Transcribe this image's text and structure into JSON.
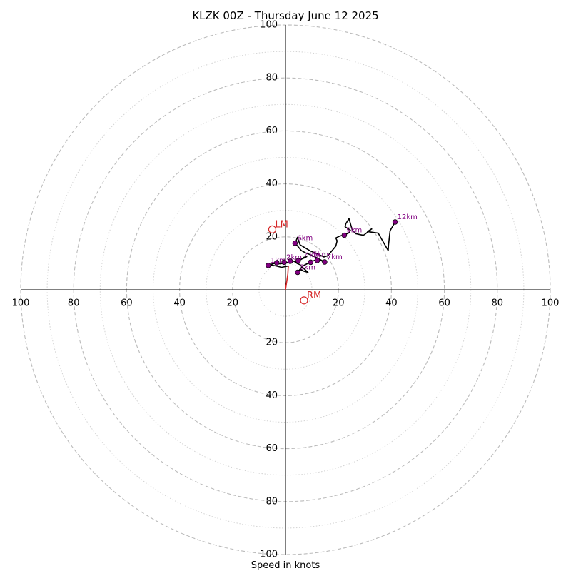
{
  "chart_data": {
    "type": "scatter",
    "title": "KLZK 00Z - Thursday June 12 2025",
    "xlabel": "Speed in knots",
    "axis_range": [
      -100,
      100
    ],
    "major_rings": [
      20,
      40,
      60,
      80,
      100
    ],
    "minor_rings": [
      10,
      30,
      50,
      70,
      90
    ],
    "tick_labels": {
      "x_left": [
        "100",
        "80",
        "60",
        "40",
        "20"
      ],
      "x_right": [
        "20",
        "40",
        "60",
        "80",
        "100"
      ],
      "y_top": [
        "100",
        "80",
        "60",
        "40",
        "20"
      ],
      "y_bottom": [
        "20",
        "40",
        "60",
        "80",
        "100"
      ]
    },
    "series": [
      {
        "color": "#d62728",
        "points": [
          [
            0,
            0
          ],
          [
            0.6,
            4
          ],
          [
            0.9,
            6
          ],
          [
            1,
            8
          ],
          [
            1.1,
            9
          ]
        ]
      },
      {
        "color": "#000000",
        "points": [
          [
            1.1,
            9
          ],
          [
            -1.5,
            8.5
          ],
          [
            -3.5,
            9
          ],
          [
            -6,
            9.5
          ],
          [
            -4,
            10
          ],
          [
            -2,
            9.8
          ],
          [
            0,
            10.2
          ],
          [
            2,
            10.6
          ],
          [
            4.5,
            11
          ],
          [
            6,
            11.5
          ],
          [
            7,
            12.3
          ],
          [
            8,
            12.5
          ],
          [
            7,
            12
          ],
          [
            5,
            11.2
          ],
          [
            3.5,
            10.6
          ],
          [
            4.5,
            9.9
          ],
          [
            5.5,
            9.5
          ],
          [
            6.5,
            8.4
          ],
          [
            8.5,
            6.6
          ],
          [
            7,
            7
          ],
          [
            5.8,
            7.6
          ],
          [
            4.5,
            6.5
          ],
          [
            6.5,
            9
          ],
          [
            9.5,
            10.5
          ],
          [
            12,
            11.5
          ],
          [
            14.8,
            10.5
          ],
          [
            11,
            12.5
          ],
          [
            9,
            13.4
          ],
          [
            7.5,
            14
          ],
          [
            6,
            14.8
          ],
          [
            3.7,
            17.6
          ],
          [
            4.5,
            19.8
          ],
          [
            5.5,
            17
          ],
          [
            9.5,
            14.6
          ],
          [
            12,
            13.6
          ],
          [
            14.5,
            12.4
          ],
          [
            16,
            12.9
          ],
          [
            19,
            16.5
          ],
          [
            19.5,
            18.5
          ],
          [
            19,
            19.6
          ],
          [
            20.5,
            20.3
          ],
          [
            22.2,
            20.7
          ],
          [
            24,
            21.5
          ],
          [
            24.5,
            22.5
          ],
          [
            22.5,
            23.8
          ],
          [
            22.8,
            25
          ],
          [
            24,
            26.9
          ],
          [
            25.2,
            22.6
          ],
          [
            26.5,
            21.2
          ],
          [
            28.3,
            20.8
          ],
          [
            29.4,
            20.6
          ],
          [
            30,
            21
          ],
          [
            32.5,
            23
          ],
          [
            31,
            22
          ],
          [
            35,
            21.4
          ],
          [
            38.8,
            14.8
          ],
          [
            38.9,
            16.8
          ],
          [
            39.5,
            22.3
          ],
          [
            41.4,
            25.6
          ]
        ]
      }
    ],
    "height_markers": [
      {
        "label": "1km",
        "x": -6.5,
        "y": 9.2
      },
      {
        "label": "",
        "x": -3.3,
        "y": 10.2
      },
      {
        "label": "2km",
        "x": -0.5,
        "y": 10.4
      },
      {
        "label": "",
        "x": 1.8,
        "y": 10.8
      },
      {
        "label": "",
        "x": 4.8,
        "y": 11
      },
      {
        "label": "3km",
        "x": 4.6,
        "y": 6.6
      },
      {
        "label": "",
        "x": 9.5,
        "y": 10.4
      },
      {
        "label": "",
        "x": 12,
        "y": 11.1
      },
      {
        "label": "7km",
        "x": 14.8,
        "y": 10.5
      },
      {
        "label": "6km",
        "x": 3.6,
        "y": 17.6
      },
      {
        "label": "9km",
        "x": 22.2,
        "y": 20.6
      },
      {
        "label": "12km",
        "x": 41.4,
        "y": 25.6
      }
    ],
    "extra_labels": [
      {
        "label": "4km",
        "x": 6.5,
        "y": 11.2
      },
      {
        "label": "5km",
        "x": 9.5,
        "y": 11.5
      }
    ],
    "storm_motion": [
      {
        "label": "LM",
        "x": -5,
        "y": 22.8
      },
      {
        "label": "RM",
        "x": 7,
        "y": -4
      }
    ],
    "colors": {
      "hodograph_low": "#d62728",
      "hodograph": "#000000",
      "height_marker": "#800080",
      "storm_motion": "#d62728",
      "ring": "#bbbbbb",
      "minor_ring": "#d3d3d3"
    },
    "grid": true
  }
}
